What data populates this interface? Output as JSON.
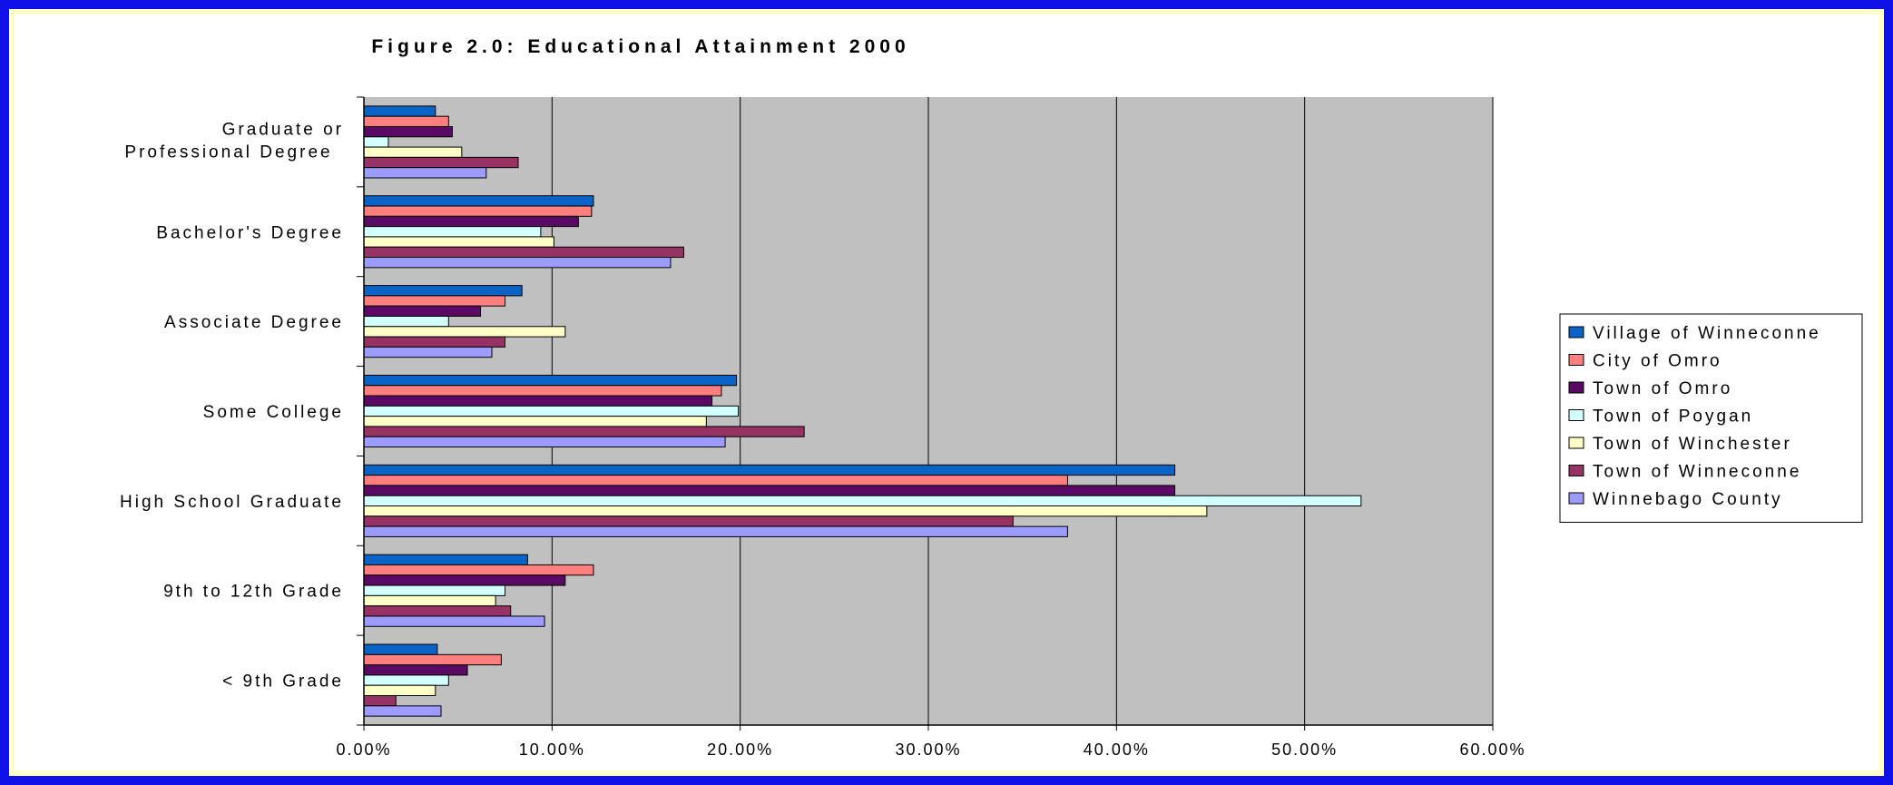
{
  "chart_data": {
    "type": "bar",
    "orientation": "horizontal",
    "title": "Figure 2.0: Educational Attainment 2000",
    "xlabel": "",
    "ylabel": "",
    "xlim": [
      0,
      0.6
    ],
    "x_ticks": [
      "0.00%",
      "10.00%",
      "20.00%",
      "30.00%",
      "40.00%",
      "50.00%",
      "60.00%"
    ],
    "grid": true,
    "legend_position": "right",
    "categories": [
      "Graduate or Professional Degree",
      "Bachelor's Degree",
      "Associate Degree",
      "Some College",
      "High School Graduate",
      "9th to 12th Grade",
      "< 9th Grade"
    ],
    "series": [
      {
        "name": "Village of Winneconne",
        "color": "#0a64c8",
        "values": [
          0.038,
          0.122,
          0.084,
          0.198,
          0.431,
          0.087,
          0.039
        ]
      },
      {
        "name": "City of Omro",
        "color": "#ff7f7f",
        "values": [
          0.045,
          0.121,
          0.075,
          0.19,
          0.374,
          0.122,
          0.073
        ]
      },
      {
        "name": "Town of Omro",
        "color": "#5a0a64",
        "values": [
          0.047,
          0.114,
          0.062,
          0.185,
          0.431,
          0.107,
          0.055
        ]
      },
      {
        "name": "Town of Poygan",
        "color": "#d2ffff",
        "values": [
          0.013,
          0.094,
          0.045,
          0.199,
          0.53,
          0.075,
          0.045
        ]
      },
      {
        "name": "Town of Winchester",
        "color": "#ffffc8",
        "values": [
          0.052,
          0.101,
          0.107,
          0.182,
          0.448,
          0.07,
          0.038
        ]
      },
      {
        "name": "Town of Winneconne",
        "color": "#963264",
        "values": [
          0.082,
          0.17,
          0.075,
          0.234,
          0.345,
          0.078,
          0.017
        ]
      },
      {
        "name": "Winnebago County",
        "color": "#9c9cff",
        "values": [
          0.065,
          0.163,
          0.068,
          0.192,
          0.374,
          0.096,
          0.041
        ]
      }
    ]
  }
}
